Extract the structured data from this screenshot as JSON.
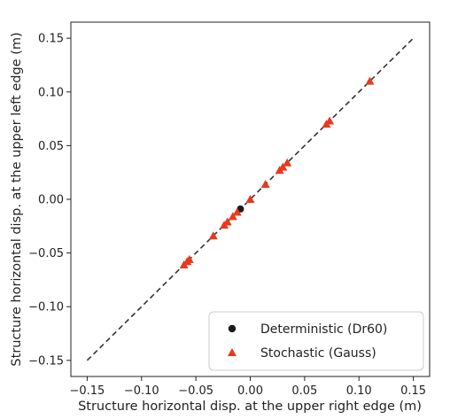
{
  "chart_data": {
    "type": "scatter",
    "xlabel": "Structure horizontal disp. at the upper right edge (m)",
    "ylabel": "Structure horizontal disp. at the upper left edge (m)",
    "xlim": [
      -0.165,
      0.165
    ],
    "ylim": [
      -0.165,
      0.165
    ],
    "xticks": [
      -0.15,
      -0.1,
      -0.05,
      0.0,
      0.05,
      0.1,
      0.15
    ],
    "xtick_labels": [
      "−0.15",
      "−0.10",
      "−0.05",
      "0.00",
      "0.05",
      "0.10",
      "0.15"
    ],
    "yticks": [
      -0.15,
      -0.1,
      -0.05,
      0.0,
      0.05,
      0.1,
      0.15
    ],
    "ytick_labels": [
      "−0.15",
      "−0.10",
      "−0.05",
      "0.00",
      "0.05",
      "0.10",
      "0.15"
    ],
    "grid": false,
    "legend_position": "bottom-right",
    "reference_line": {
      "x": [
        -0.15,
        0.15
      ],
      "y": [
        -0.15,
        0.15
      ],
      "style": "dashed",
      "color": "#333333"
    },
    "series": [
      {
        "name": "Deterministic (Dr60)",
        "marker": "circle",
        "color": "#1a1a1a",
        "x": [
          -0.009
        ],
        "y": [
          -0.009
        ]
      },
      {
        "name": "Stochastic (Gauss)",
        "marker": "triangle",
        "color": "#e8391e",
        "x": [
          -0.061,
          -0.058,
          -0.056,
          -0.034,
          -0.024,
          -0.021,
          -0.016,
          -0.012,
          0.0,
          0.014,
          0.027,
          0.03,
          0.034,
          0.07,
          0.073,
          0.11
        ],
        "y": [
          -0.061,
          -0.058,
          -0.056,
          -0.034,
          -0.024,
          -0.021,
          -0.016,
          -0.012,
          0.0,
          0.014,
          0.027,
          0.03,
          0.034,
          0.07,
          0.073,
          0.11
        ]
      }
    ]
  }
}
